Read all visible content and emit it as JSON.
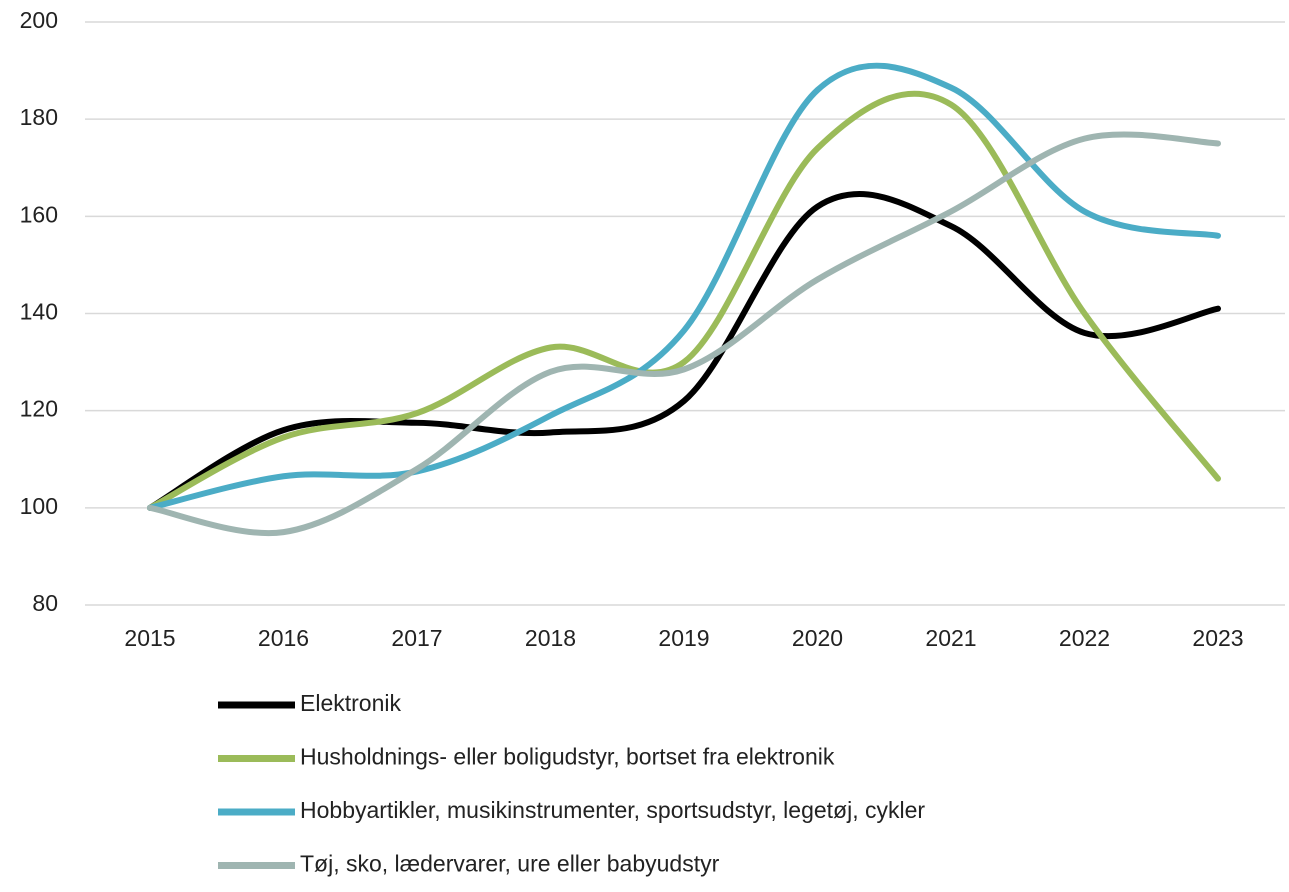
{
  "chart_data": {
    "type": "line",
    "categories": [
      "2015",
      "2016",
      "2017",
      "2018",
      "2019",
      "2020",
      "2021",
      "2022",
      "2023"
    ],
    "series": [
      {
        "name": "Elektronik",
        "color": "#000000",
        "values": [
          100,
          116,
          117.5,
          115.5,
          122,
          162,
          158,
          136,
          141
        ]
      },
      {
        "name": "Husholdnings- eller boligudstyr, bortset fra elektronik",
        "color": "#9bbb59",
        "values": [
          100,
          114.5,
          119.5,
          133,
          130,
          174,
          183,
          140,
          106
        ]
      },
      {
        "name": "Hobbyartikler, musikinstrumenter, sportsudstyr, legetøj, cykler",
        "color": "#4bacc6",
        "values": [
          100,
          106.5,
          107.5,
          119,
          136.5,
          186,
          186.5,
          161,
          156
        ]
      },
      {
        "name": "Tøj, sko, lædervarer, ure eller babyudstyr",
        "color": "#9fb5b1",
        "values": [
          100,
          95,
          108,
          128,
          128.5,
          147,
          161,
          176,
          175
        ]
      }
    ],
    "ylim": [
      80,
      200
    ],
    "yticks": [
      80,
      100,
      120,
      140,
      160,
      180,
      200
    ],
    "grid": true,
    "legend": "bottom"
  }
}
